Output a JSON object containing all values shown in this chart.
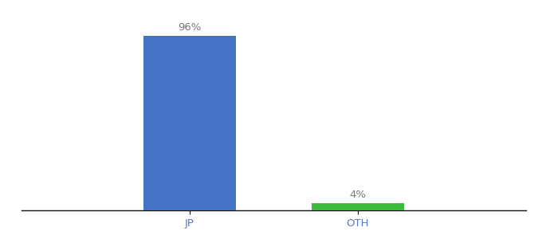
{
  "categories": [
    "JP",
    "OTH"
  ],
  "values": [
    96,
    4
  ],
  "bar_colors": [
    "#4472c4",
    "#3dbb3d"
  ],
  "value_labels": [
    "96%",
    "4%"
  ],
  "background_color": "#ffffff",
  "ylim": [
    0,
    105
  ],
  "bar_width": 0.55,
  "label_fontsize": 9.5,
  "tick_fontsize": 9.5,
  "tick_color": "#5a7abf",
  "axis_line_color": "#111111",
  "xlim": [
    -0.5,
    2.5
  ],
  "bar_positions": [
    0.5,
    1.5
  ]
}
